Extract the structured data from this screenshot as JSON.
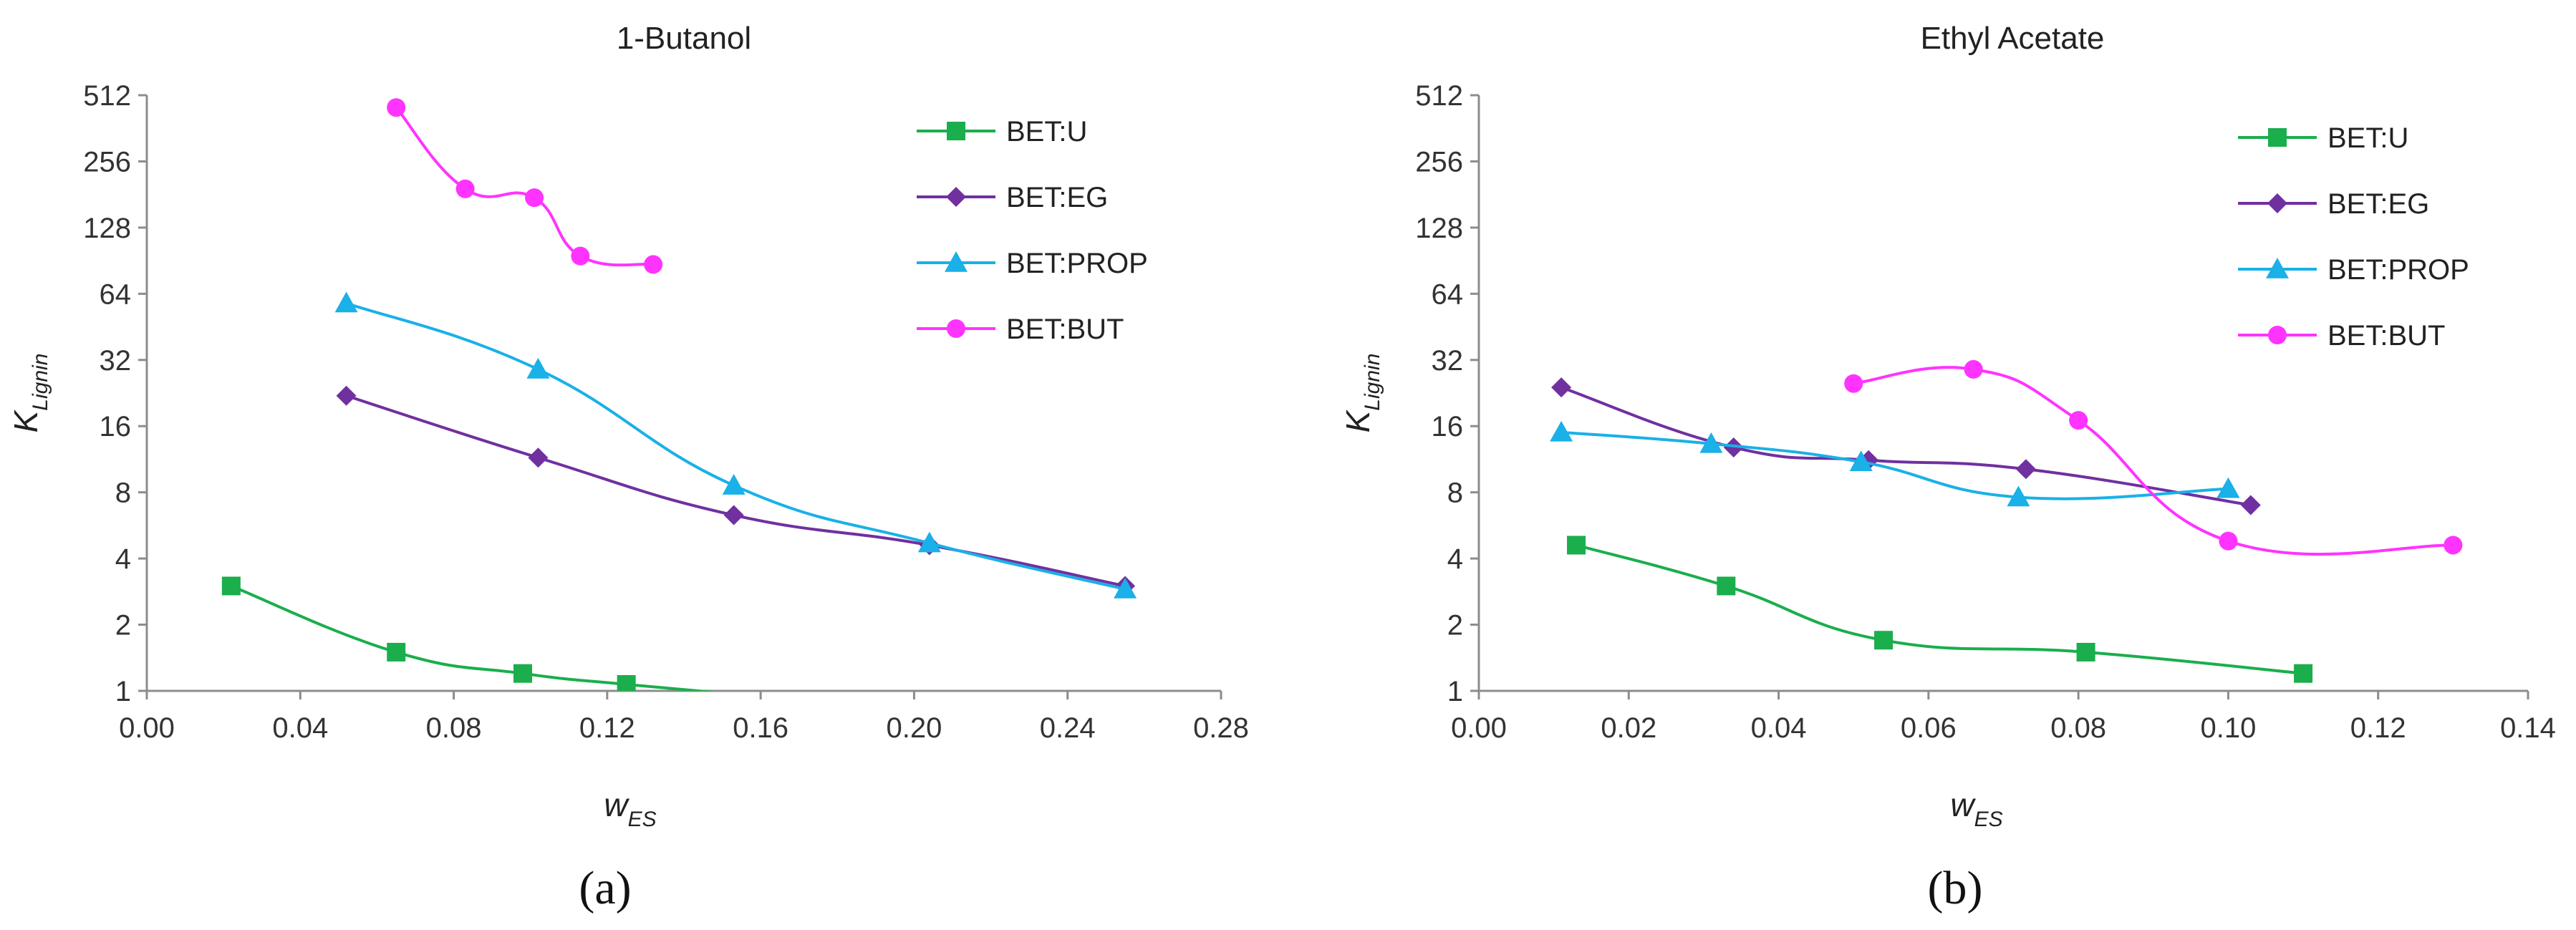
{
  "chart_data": [
    {
      "type": "line",
      "title": "1-Butanol",
      "panel_label": "(a)",
      "xlabel_main": "w",
      "xlabel_sub": "ES",
      "ylabel_main": "K",
      "ylabel_sub": "Lignin",
      "xlim": [
        0.0,
        0.28
      ],
      "x_ticks": [
        0.0,
        0.04,
        0.08,
        0.12,
        0.16,
        0.2,
        0.24,
        0.28
      ],
      "x_tick_labels": [
        "0.00",
        "0.04",
        "0.08",
        "0.12",
        "0.16",
        "0.20",
        "0.24",
        "0.28"
      ],
      "y_scale": "log2",
      "ylim": [
        1,
        512
      ],
      "y_ticks": [
        1,
        2,
        4,
        8,
        16,
        32,
        64,
        128,
        256,
        512
      ],
      "y_tick_labels": [
        "1",
        "2",
        "4",
        "8",
        "16",
        "32",
        "64",
        "128",
        "256",
        "512"
      ],
      "grid": false,
      "legend_position": "top-right",
      "series": [
        {
          "name": "BET:U",
          "color": "#1aae4c",
          "marker": "square",
          "x": [
            0.022,
            0.065,
            0.098,
            0.125,
            0.155
          ],
          "y": [
            3.0,
            1.5,
            1.2,
            1.07,
            0.96
          ]
        },
        {
          "name": "BET:EG",
          "color": "#7030a0",
          "marker": "diamond",
          "x": [
            0.052,
            0.102,
            0.153,
            0.204,
            0.255
          ],
          "y": [
            22,
            11.5,
            6.3,
            4.6,
            3.0
          ]
        },
        {
          "name": "BET:PROP",
          "color": "#1ab0e8",
          "marker": "triangle",
          "x": [
            0.052,
            0.102,
            0.153,
            0.204,
            0.255
          ],
          "y": [
            58,
            29,
            8.6,
            4.7,
            2.9
          ]
        },
        {
          "name": "BET:BUT",
          "color": "#ff33ff",
          "marker": "circle",
          "x": [
            0.065,
            0.083,
            0.101,
            0.113,
            0.132
          ],
          "y": [
            450,
            192,
            175,
            95,
            87
          ]
        }
      ]
    },
    {
      "type": "line",
      "title": "Ethyl Acetate",
      "panel_label": "(b)",
      "xlabel_main": "w",
      "xlabel_sub": "ES",
      "ylabel_main": "K",
      "ylabel_sub": "Lignin",
      "xlim": [
        0.0,
        0.14
      ],
      "x_ticks": [
        0.0,
        0.02,
        0.04,
        0.06,
        0.08,
        0.1,
        0.12,
        0.14
      ],
      "x_tick_labels": [
        "0.00",
        "0.02",
        "0.04",
        "0.06",
        "0.08",
        "0.10",
        "0.12",
        "0.14"
      ],
      "y_scale": "log2",
      "ylim": [
        1,
        512
      ],
      "y_ticks": [
        1,
        2,
        4,
        8,
        16,
        32,
        64,
        128,
        256,
        512
      ],
      "y_tick_labels": [
        "1",
        "2",
        "4",
        "8",
        "16",
        "32",
        "64",
        "128",
        "256",
        "512"
      ],
      "grid": false,
      "legend_position": "top-right",
      "series": [
        {
          "name": "BET:U",
          "color": "#1aae4c",
          "marker": "square",
          "x": [
            0.013,
            0.033,
            0.054,
            0.081,
            0.11
          ],
          "y": [
            4.6,
            3.0,
            1.7,
            1.5,
            1.2
          ]
        },
        {
          "name": "BET:EG",
          "color": "#7030a0",
          "marker": "diamond",
          "x": [
            0.011,
            0.034,
            0.052,
            0.073,
            0.103
          ],
          "y": [
            24,
            12.8,
            11.2,
            10.2,
            7.0
          ]
        },
        {
          "name": "BET:PROP",
          "color": "#1ab0e8",
          "marker": "triangle",
          "x": [
            0.011,
            0.031,
            0.051,
            0.072,
            0.1
          ],
          "y": [
            15,
            13.3,
            11.0,
            7.6,
            8.3
          ]
        },
        {
          "name": "BET:BUT",
          "color": "#ff33ff",
          "marker": "circle",
          "x": [
            0.05,
            0.066,
            0.08,
            0.1,
            0.13
          ],
          "y": [
            25,
            29,
            17,
            4.8,
            4.6
          ]
        }
      ]
    }
  ]
}
